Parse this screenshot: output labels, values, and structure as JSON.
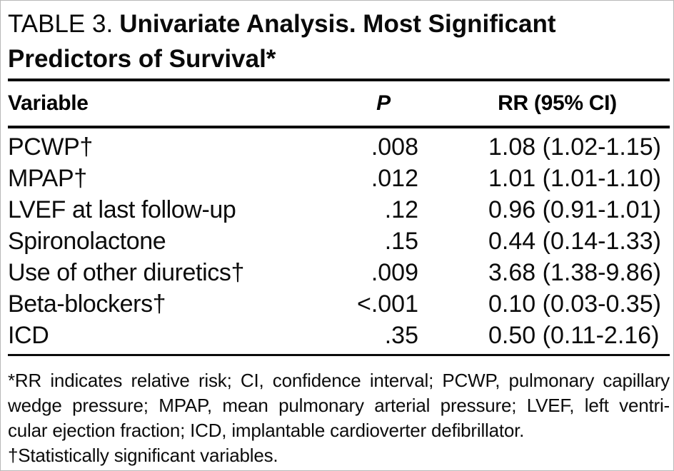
{
  "page": {
    "caption": {
      "prefix": "TABLE 3.",
      "title": "Univariate Analysis. Most Significant Predictors of Survival*"
    },
    "columns": {
      "variable": "Variable",
      "p": "P",
      "rr": "RR (95% CI)"
    },
    "rows": [
      {
        "variable": "PCWP†",
        "p": ".008",
        "rr": "1.08 (1.02-1.15)"
      },
      {
        "variable": "MPAP†",
        "p": ".012",
        "rr": "1.01 (1.01-1.10)"
      },
      {
        "variable": "LVEF at last follow-up",
        "p": ".12",
        "rr": "0.96 (0.91-1.01)"
      },
      {
        "variable": "Spironolactone",
        "p": ".15",
        "rr": "0.44 (0.14-1.33)"
      },
      {
        "variable": "Use of other diuretics†",
        "p": ".009",
        "rr": "3.68 (1.38-9.86)"
      },
      {
        "variable": "Beta-blockers†",
        "p": "<.001",
        "rr": "0.10 (0.03-0.35)"
      },
      {
        "variable": "ICD",
        "p": ".35",
        "rr": "0.50 (0.11-2.16)"
      }
    ],
    "footnote_lines": [
      "*RR indicates relative risk; CI, confidence interval; PCWP, pulmonary capillary",
      "wedge pressure; MPAP, mean pulmonary arterial pressure; LVEF, left ventri-",
      "cular ejection fraction; ICD, implantable cardioverter defibrillator.",
      "†Statistically significant variables."
    ],
    "colors": {
      "text": "#0a0a0a",
      "background": "#ffffff",
      "rule": "#0a0a0a"
    }
  }
}
